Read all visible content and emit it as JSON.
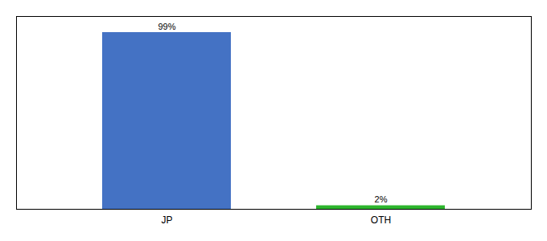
{
  "chart_data": {
    "type": "bar",
    "categories": [
      "JP",
      "OTH"
    ],
    "values": [
      99,
      2
    ],
    "value_labels": [
      "99%",
      "2%"
    ],
    "colors": [
      "#4472c4",
      "#2db52d"
    ],
    "ylim": [
      0,
      108
    ],
    "data_labels": true,
    "tick_labels": "x"
  }
}
